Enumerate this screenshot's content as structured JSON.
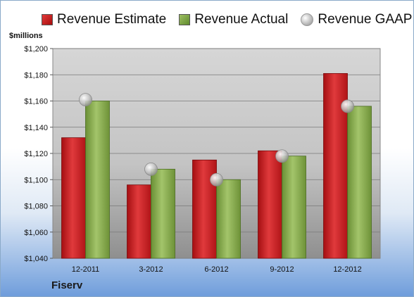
{
  "unit_label": "$millions",
  "company": "Fiserv",
  "colors": {
    "estimate": "#c8181c",
    "actual": "#86a84a",
    "gaap": "#bdbdbd"
  },
  "legend": {
    "estimate": "Revenue Estimate",
    "actual": "Revenue Actual",
    "gaap": "Revenue GAAP"
  },
  "chart_data": {
    "type": "bar",
    "categories": [
      "12-2011",
      "3-2012",
      "6-2012",
      "9-2012",
      "12-2012"
    ],
    "series": [
      {
        "name": "Revenue Estimate",
        "values": [
          1132,
          1096,
          1115,
          1122,
          1181
        ]
      },
      {
        "name": "Revenue Actual",
        "values": [
          1160,
          1108,
          1100,
          1118,
          1156
        ]
      },
      {
        "name": "Revenue GAAP",
        "values": [
          1161,
          1108,
          1100,
          1118,
          1156
        ],
        "style": "marker"
      }
    ],
    "ylim": [
      1040,
      1200
    ],
    "yticks": [
      1040,
      1060,
      1080,
      1100,
      1120,
      1140,
      1160,
      1180,
      1200
    ],
    "ytick_labels": [
      "$1,040",
      "$1,060",
      "$1,080",
      "$1,100",
      "$1,120",
      "$1,140",
      "$1,160",
      "$1,180",
      "$1,200"
    ],
    "grid": true,
    "legend_position": "top"
  }
}
